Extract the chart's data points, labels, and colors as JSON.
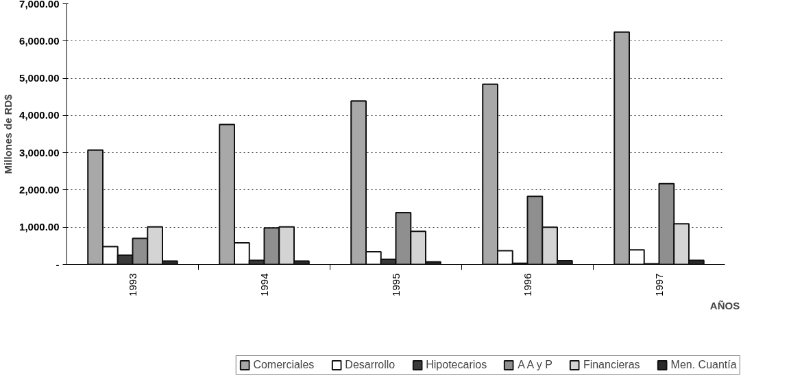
{
  "chart_data": {
    "type": "bar",
    "ylabel": "Millones de RD$",
    "xlabel": "AÑOS",
    "categories": [
      "1993",
      "1994",
      "1995",
      "1996",
      "1997"
    ],
    "series": [
      {
        "name": "Comerciales",
        "color": "#a8a8a8",
        "values": [
          3070,
          3760,
          4390,
          4840,
          6240
        ]
      },
      {
        "name": "Desarrollo",
        "color": "#ffffff",
        "values": [
          480,
          580,
          340,
          370,
          390
        ]
      },
      {
        "name": "Hipotecarios",
        "color": "#3a3a3a",
        "values": [
          250,
          110,
          140,
          30,
          20
        ]
      },
      {
        "name": "A A y P",
        "color": "#8f8f8f",
        "values": [
          700,
          980,
          1390,
          1830,
          2170
        ]
      },
      {
        "name": "Financieras",
        "color": "#d4d4d4",
        "values": [
          1010,
          1010,
          890,
          1000,
          1090
        ]
      },
      {
        "name": "Men. Cuantía",
        "color": "#2a2a2a",
        "values": [
          90,
          90,
          70,
          100,
          110
        ]
      }
    ],
    "ylim": [
      0,
      7000
    ],
    "yticks": [
      {
        "value": 0,
        "label": "-"
      },
      {
        "value": 1000,
        "label": "1,000.00"
      },
      {
        "value": 2000,
        "label": "2,000.00"
      },
      {
        "value": 3000,
        "label": "3,000.00"
      },
      {
        "value": 4000,
        "label": "4,000.00"
      },
      {
        "value": 5000,
        "label": "5,000.00"
      },
      {
        "value": 6000,
        "label": "6,000.00"
      },
      {
        "value": 7000,
        "label": "7,000.00"
      }
    ],
    "grid": "y",
    "legend": "bottom"
  }
}
